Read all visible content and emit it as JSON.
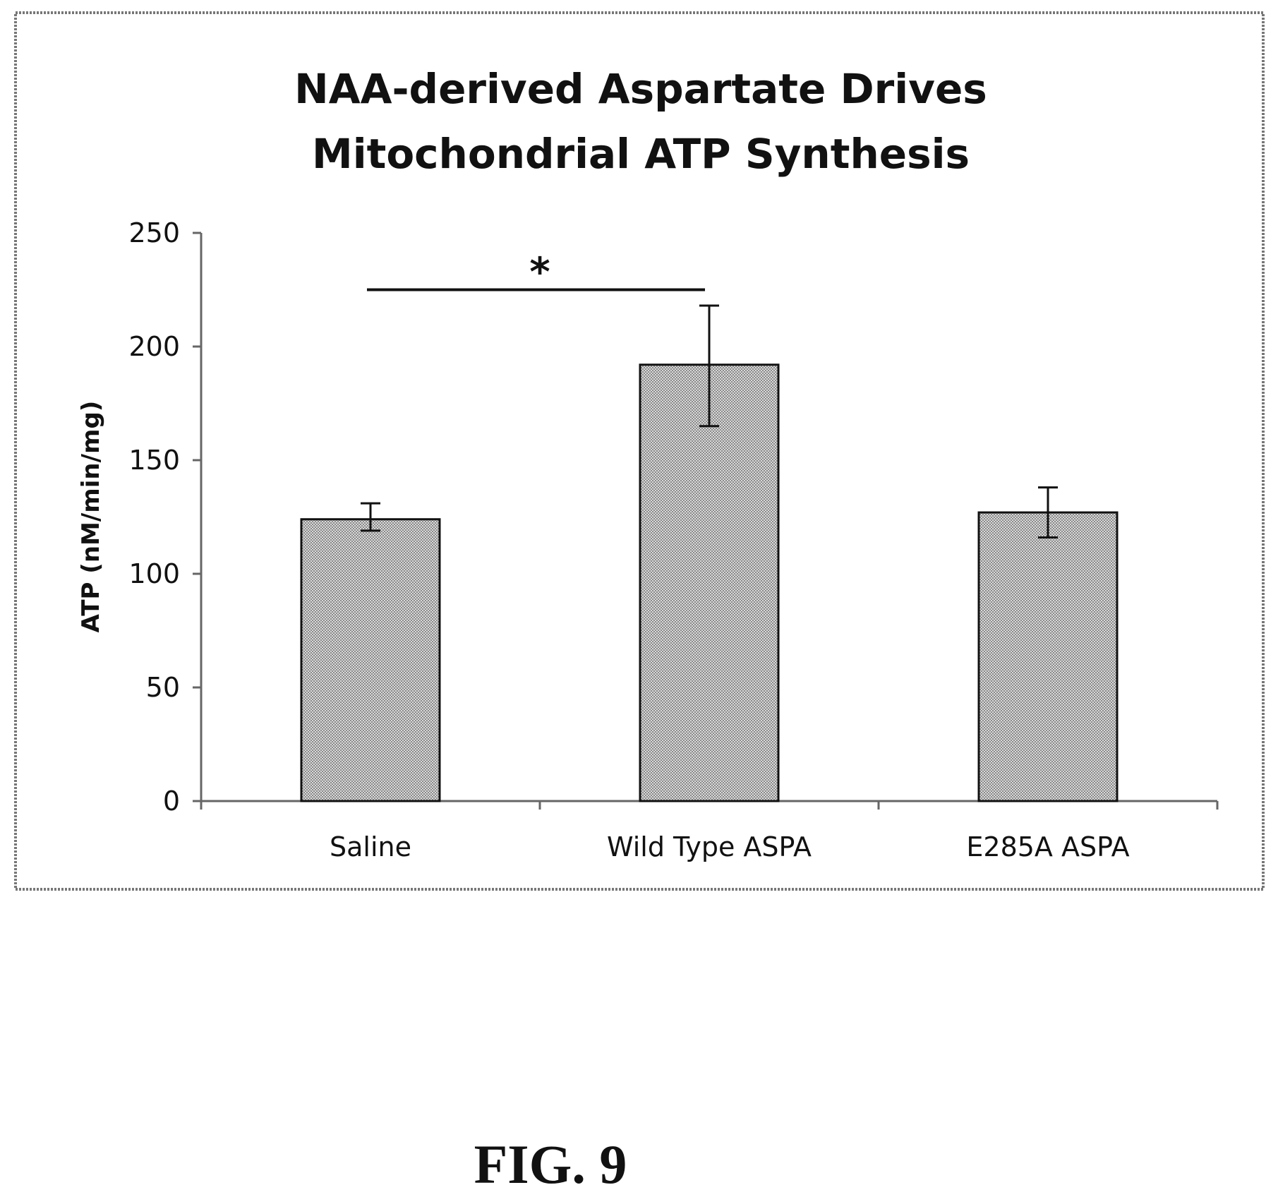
{
  "chart_data": {
    "type": "bar",
    "title": [
      "NAA-derived Aspartate Drives",
      "Mitochondrial ATP Synthesis"
    ],
    "xlabel": "",
    "ylabel": "ATP (nM/min/mg)",
    "ylim": [
      0,
      250
    ],
    "yticks": [
      0,
      50,
      100,
      150,
      200,
      250
    ],
    "categories": [
      "Saline",
      "Wild Type ASPA",
      "E285A ASPA"
    ],
    "values": [
      124,
      192,
      127
    ],
    "error_low": [
      119,
      165,
      116
    ],
    "error_high": [
      131,
      218,
      138
    ],
    "grid": false,
    "annotations": [
      {
        "text": "*",
        "from_category": "Saline",
        "to_category": "Wild Type ASPA",
        "y": 225
      }
    ],
    "colors": {
      "bar_fill": "#bdbdbd",
      "bar_stroke": "#111111",
      "frame": "#777777"
    }
  },
  "caption": "FIG. 9"
}
